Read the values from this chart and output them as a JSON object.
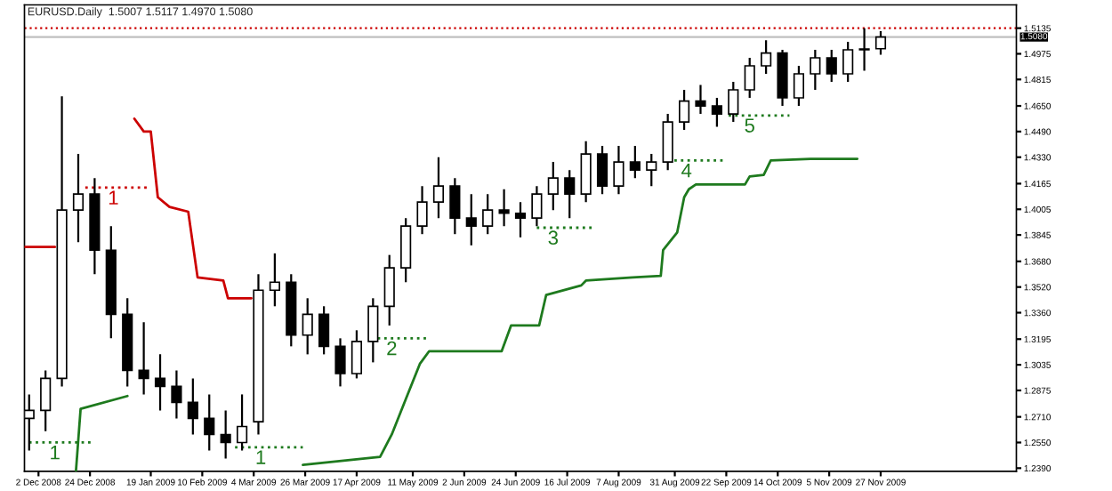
{
  "chart_data": {
    "type": "candlestick",
    "title": "EURUSD.Daily  1.5007 1.5117 1.4970 1.5080",
    "x": [
      "2008-11-28",
      "2008-12-05",
      "2008-12-12",
      "2008-12-19",
      "2008-12-26",
      "2009-01-02",
      "2009-01-09",
      "2009-01-16",
      "2009-01-23",
      "2009-01-30",
      "2009-02-06",
      "2009-02-13",
      "2009-02-20",
      "2009-02-27",
      "2009-03-06",
      "2009-03-13",
      "2009-03-20",
      "2009-03-27",
      "2009-04-03",
      "2009-04-10",
      "2009-04-17",
      "2009-04-24",
      "2009-05-01",
      "2009-05-08",
      "2009-05-15",
      "2009-05-22",
      "2009-05-29",
      "2009-06-05",
      "2009-06-12",
      "2009-06-19",
      "2009-06-26",
      "2009-07-03",
      "2009-07-10",
      "2009-07-17",
      "2009-07-24",
      "2009-07-31",
      "2009-08-07",
      "2009-08-14",
      "2009-08-21",
      "2009-08-28",
      "2009-09-04",
      "2009-09-11",
      "2009-09-18",
      "2009-09-25",
      "2009-10-02",
      "2009-10-09",
      "2009-10-16",
      "2009-10-23",
      "2009-10-30",
      "2009-11-06",
      "2009-11-13",
      "2009-11-20",
      "2009-11-27"
    ],
    "ohlc": [
      [
        1.27,
        1.285,
        1.25,
        1.275
      ],
      [
        1.275,
        1.3,
        1.262,
        1.295
      ],
      [
        1.295,
        1.471,
        1.29,
        1.4
      ],
      [
        1.4,
        1.435,
        1.38,
        1.41
      ],
      [
        1.41,
        1.42,
        1.36,
        1.375
      ],
      [
        1.375,
        1.39,
        1.32,
        1.335
      ],
      [
        1.335,
        1.345,
        1.29,
        1.3
      ],
      [
        1.3,
        1.33,
        1.285,
        1.295
      ],
      [
        1.295,
        1.31,
        1.275,
        1.29
      ],
      [
        1.29,
        1.3,
        1.27,
        1.28
      ],
      [
        1.28,
        1.295,
        1.26,
        1.27
      ],
      [
        1.27,
        1.285,
        1.25,
        1.26
      ],
      [
        1.26,
        1.275,
        1.245,
        1.255
      ],
      [
        1.255,
        1.285,
        1.25,
        1.265
      ],
      [
        1.268,
        1.36,
        1.26,
        1.35
      ],
      [
        1.35,
        1.373,
        1.34,
        1.355
      ],
      [
        1.355,
        1.36,
        1.315,
        1.322
      ],
      [
        1.322,
        1.345,
        1.31,
        1.335
      ],
      [
        1.335,
        1.34,
        1.31,
        1.315
      ],
      [
        1.315,
        1.32,
        1.29,
        1.298
      ],
      [
        1.298,
        1.325,
        1.295,
        1.318
      ],
      [
        1.318,
        1.345,
        1.305,
        1.34
      ],
      [
        1.34,
        1.372,
        1.328,
        1.364
      ],
      [
        1.364,
        1.395,
        1.355,
        1.39
      ],
      [
        1.39,
        1.415,
        1.385,
        1.405
      ],
      [
        1.405,
        1.433,
        1.395,
        1.415
      ],
      [
        1.415,
        1.42,
        1.385,
        1.395
      ],
      [
        1.395,
        1.41,
        1.378,
        1.39
      ],
      [
        1.39,
        1.41,
        1.385,
        1.4
      ],
      [
        1.4,
        1.413,
        1.39,
        1.398
      ],
      [
        1.398,
        1.405,
        1.383,
        1.395
      ],
      [
        1.395,
        1.415,
        1.39,
        1.41
      ],
      [
        1.41,
        1.43,
        1.4,
        1.42
      ],
      [
        1.42,
        1.425,
        1.395,
        1.41
      ],
      [
        1.41,
        1.443,
        1.405,
        1.435
      ],
      [
        1.435,
        1.44,
        1.41,
        1.415
      ],
      [
        1.415,
        1.44,
        1.41,
        1.43
      ],
      [
        1.43,
        1.44,
        1.42,
        1.425
      ],
      [
        1.425,
        1.435,
        1.415,
        1.43
      ],
      [
        1.43,
        1.46,
        1.425,
        1.455
      ],
      [
        1.455,
        1.475,
        1.45,
        1.468
      ],
      [
        1.468,
        1.478,
        1.46,
        1.465
      ],
      [
        1.465,
        1.47,
        1.452,
        1.46
      ],
      [
        1.46,
        1.48,
        1.455,
        1.475
      ],
      [
        1.475,
        1.495,
        1.47,
        1.49
      ],
      [
        1.49,
        1.506,
        1.485,
        1.498
      ],
      [
        1.498,
        1.5,
        1.465,
        1.47
      ],
      [
        1.47,
        1.49,
        1.465,
        1.485
      ],
      [
        1.485,
        1.5,
        1.475,
        1.495
      ],
      [
        1.495,
        1.5,
        1.48,
        1.485
      ],
      [
        1.485,
        1.505,
        1.48,
        1.5
      ],
      [
        1.5,
        1.5135,
        1.487,
        1.5
      ],
      [
        1.5007,
        1.5117,
        1.497,
        1.508
      ]
    ],
    "series": [
      {
        "type": "line",
        "color": "#cc0000",
        "x": [
          "2008-11-26",
          "2008-12-09"
        ],
        "values": [
          1.377,
          1.377
        ]
      },
      {
        "type": "line",
        "color": "#cc0000",
        "x": [
          "2009-01-12",
          "2009-01-16",
          "2009-01-19",
          "2009-01-22",
          "2009-01-27",
          "2009-02-04",
          "2009-02-08",
          "2009-02-19",
          "2009-02-21",
          "2009-03-03"
        ],
        "values": [
          1.457,
          1.449,
          1.449,
          1.408,
          1.402,
          1.399,
          1.358,
          1.356,
          1.345,
          1.345
        ]
      },
      {
        "type": "line",
        "color": "#1e7a1e",
        "x": [
          "2008-12-18",
          "2008-12-20",
          "2009-01-09"
        ],
        "values": [
          1.237,
          1.276,
          1.284
        ]
      },
      {
        "type": "line",
        "color": "#1e7a1e",
        "x": [
          "2009-03-25",
          "2009-04-27",
          "2009-05-02",
          "2009-05-08",
          "2009-05-14",
          "2009-05-18",
          "2009-06-18",
          "2009-06-22",
          "2009-07-04",
          "2009-07-07",
          "2009-07-22",
          "2009-07-24",
          "2009-08-13",
          "2009-08-25",
          "2009-08-26",
          "2009-09-01",
          "2009-09-04",
          "2009-09-06",
          "2009-09-09",
          "2009-09-30",
          "2009-10-02",
          "2009-10-08",
          "2009-10-11",
          "2009-10-28",
          "2009-11-17"
        ],
        "values": [
          1.241,
          1.246,
          1.26,
          1.282,
          1.304,
          1.312,
          1.312,
          1.328,
          1.328,
          1.347,
          1.353,
          1.356,
          1.358,
          1.359,
          1.375,
          1.386,
          1.408,
          1.413,
          1.416,
          1.416,
          1.421,
          1.422,
          1.431,
          1.432,
          1.432
        ]
      },
      {
        "type": "line",
        "color": "#1e7a1e",
        "line_style": "dotted",
        "x": [
          "2008-11-28",
          "2008-12-09",
          "2008-12-26"
        ],
        "values": [
          1.255,
          1.255,
          1.255
        ]
      },
      {
        "type": "line",
        "color": "#1e7a1e",
        "line_style": "dotted",
        "x": [
          "2009-02-24",
          "2009-03-07",
          "2009-03-25"
        ],
        "values": [
          1.252,
          1.252,
          1.252
        ]
      },
      {
        "type": "line",
        "color": "#1e7a1e",
        "line_style": "dotted",
        "x": [
          "2009-04-26",
          "2009-05-02",
          "2009-05-18"
        ],
        "values": [
          1.32,
          1.32,
          1.32
        ]
      },
      {
        "type": "line",
        "color": "#1e7a1e",
        "line_style": "dotted",
        "x": [
          "2009-07-03",
          "2009-07-10",
          "2009-07-27"
        ],
        "values": [
          1.389,
          1.389,
          1.389
        ]
      },
      {
        "type": "line",
        "color": "#1e7a1e",
        "line_style": "dotted",
        "x": [
          "2009-08-28",
          "2009-09-05",
          "2009-09-21"
        ],
        "values": [
          1.431,
          1.431,
          1.431
        ]
      },
      {
        "type": "line",
        "color": "#1e7a1e",
        "line_style": "dotted",
        "x": [
          "2009-09-23",
          "2009-10-02",
          "2009-10-19"
        ],
        "values": [
          1.459,
          1.459,
          1.459
        ]
      },
      {
        "type": "line",
        "color": "#cc0000",
        "line_style": "dotted",
        "x": [
          "2008-12-22",
          "2009-01-03",
          "2009-01-19"
        ],
        "values": [
          1.414,
          1.414,
          1.414
        ]
      }
    ],
    "annotations": [
      {
        "text": "1",
        "x": "2008-12-09",
        "y": 1.255
      },
      {
        "text": "1",
        "x": "2009-03-07",
        "y": 1.252
      },
      {
        "text": "2",
        "x": "2009-05-02",
        "y": 1.32
      },
      {
        "text": "3",
        "x": "2009-07-10",
        "y": 1.389
      },
      {
        "text": "4",
        "x": "2009-09-05",
        "y": 1.431
      },
      {
        "text": "5",
        "x": "2009-10-02",
        "y": 1.459
      },
      {
        "text": "1",
        "x": "2009-01-03",
        "y": 1.414
      }
    ],
    "ref_lines": [
      {
        "axis": "y",
        "value": 1.508,
        "label": "1.5080",
        "color": "#c0c0c0",
        "line_style": "solid"
      },
      {
        "axis": "y",
        "value": 1.5135,
        "label": null,
        "color": "#cc0000",
        "line_style": "dotted"
      }
    ],
    "xlim": [
      "2008-11-26",
      "2010-01-24"
    ],
    "xticks": [
      {
        "value": "2008-12-02",
        "label": "2 Dec 2008"
      },
      {
        "value": "2008-12-24",
        "label": "24 Dec 2008"
      },
      {
        "value": "2009-01-19",
        "label": "19 Jan 2009"
      },
      {
        "value": "2009-02-10",
        "label": "10 Feb 2009"
      },
      {
        "value": "2009-03-04",
        "label": "4 Mar 2009"
      },
      {
        "value": "2009-03-26",
        "label": "26 Mar 2009"
      },
      {
        "value": "2009-04-17",
        "label": "17 Apr 2009"
      },
      {
        "value": "2009-05-11",
        "label": "11 May 2009"
      },
      {
        "value": "2009-06-02",
        "label": "2 Jun 2009"
      },
      {
        "value": "2009-06-24",
        "label": "24 Jun 2009"
      },
      {
        "value": "2009-07-16",
        "label": "16 Jul 2009"
      },
      {
        "value": "2009-08-07",
        "label": "7 Aug 2009"
      },
      {
        "value": "2009-08-31",
        "label": "31 Aug 2009"
      },
      {
        "value": "2009-09-22",
        "label": "22 Sep 2009"
      },
      {
        "value": "2009-10-14",
        "label": "14 Oct 2009"
      },
      {
        "value": "2009-11-05",
        "label": "5 Nov 2009"
      },
      {
        "value": "2009-11-27",
        "label": "27 Nov 2009"
      }
    ],
    "ylim": [
      1.237,
      1.528
    ],
    "yticks": [
      {
        "value": 1.239,
        "label": "1.2390"
      },
      {
        "value": 1.255,
        "label": "1.2550"
      },
      {
        "value": 1.271,
        "label": "1.2710"
      },
      {
        "value": 1.2875,
        "label": "1.2875"
      },
      {
        "value": 1.3035,
        "label": "1.3035"
      },
      {
        "value": 1.3195,
        "label": "1.3195"
      },
      {
        "value": 1.336,
        "label": "1.3360"
      },
      {
        "value": 1.352,
        "label": "1.3520"
      },
      {
        "value": 1.368,
        "label": "1.3680"
      },
      {
        "value": 1.3845,
        "label": "1.3845"
      },
      {
        "value": 1.4005,
        "label": "1.4005"
      },
      {
        "value": 1.4165,
        "label": "1.4165"
      },
      {
        "value": 1.433,
        "label": "1.4330"
      },
      {
        "value": 1.449,
        "label": "1.4490"
      },
      {
        "value": 1.465,
        "label": "1.4650"
      },
      {
        "value": 1.4815,
        "label": "1.4815"
      },
      {
        "value": 1.4975,
        "label": "1.4975"
      },
      {
        "value": 1.5135,
        "label": "1.5135"
      }
    ],
    "grid": false,
    "legend": false
  }
}
